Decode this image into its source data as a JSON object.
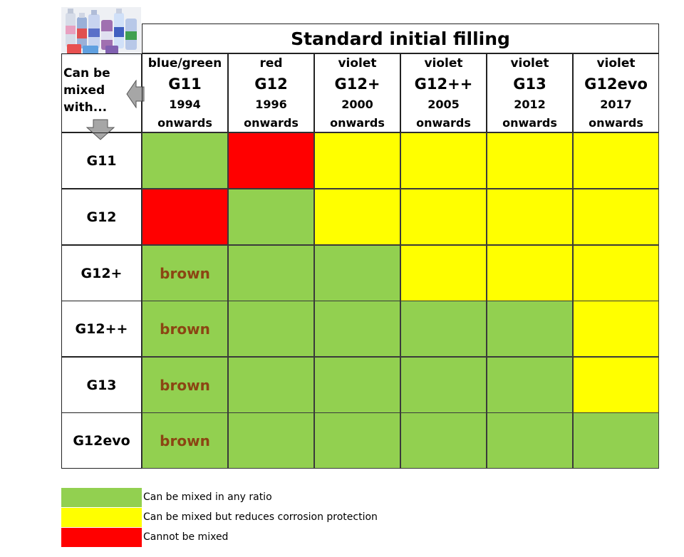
{
  "title": "Standard initial filling",
  "corner_label": "Can be\nmixed\nwith...",
  "columns": [
    {
      "color": "blue/green",
      "name": "G11",
      "year": "1994",
      "note": "onwards"
    },
    {
      "color": "red",
      "name": "G12",
      "year": "1996",
      "note": "onwards"
    },
    {
      "color": "violet",
      "name": "G12+",
      "year": "2000",
      "note": "onwards"
    },
    {
      "color": "violet",
      "name": "G12++",
      "year": "2005",
      "note": "onwards"
    },
    {
      "color": "violet",
      "name": "G13",
      "year": "2012",
      "note": "onwards"
    },
    {
      "color": "violet",
      "name": "G12evo",
      "year": "2017",
      "note": "onwards"
    }
  ],
  "rows": [
    {
      "label": "G11",
      "cells": [
        {
          "s": "green",
          "t": ""
        },
        {
          "s": "red",
          "t": ""
        },
        {
          "s": "yellow",
          "t": ""
        },
        {
          "s": "yellow",
          "t": ""
        },
        {
          "s": "yellow",
          "t": ""
        },
        {
          "s": "yellow",
          "t": ""
        }
      ]
    },
    {
      "label": "G12",
      "cells": [
        {
          "s": "red",
          "t": ""
        },
        {
          "s": "green",
          "t": ""
        },
        {
          "s": "yellow",
          "t": ""
        },
        {
          "s": "yellow",
          "t": ""
        },
        {
          "s": "yellow",
          "t": ""
        },
        {
          "s": "yellow",
          "t": ""
        }
      ]
    },
    {
      "label": "G12+",
      "cells": [
        {
          "s": "green",
          "t": "brown"
        },
        {
          "s": "green",
          "t": ""
        },
        {
          "s": "green",
          "t": ""
        },
        {
          "s": "yellow",
          "t": ""
        },
        {
          "s": "yellow",
          "t": ""
        },
        {
          "s": "yellow",
          "t": ""
        }
      ]
    },
    {
      "label": "G12++",
      "cells": [
        {
          "s": "green",
          "t": "brown"
        },
        {
          "s": "green",
          "t": ""
        },
        {
          "s": "green",
          "t": ""
        },
        {
          "s": "green",
          "t": ""
        },
        {
          "s": "green",
          "t": ""
        },
        {
          "s": "yellow",
          "t": ""
        }
      ]
    },
    {
      "label": "G13",
      "cells": [
        {
          "s": "green",
          "t": "brown"
        },
        {
          "s": "green",
          "t": ""
        },
        {
          "s": "green",
          "t": ""
        },
        {
          "s": "green",
          "t": ""
        },
        {
          "s": "green",
          "t": ""
        },
        {
          "s": "yellow",
          "t": ""
        }
      ]
    },
    {
      "label": "G12evo",
      "cells": [
        {
          "s": "green",
          "t": "brown"
        },
        {
          "s": "green",
          "t": ""
        },
        {
          "s": "green",
          "t": ""
        },
        {
          "s": "green",
          "t": ""
        },
        {
          "s": "green",
          "t": ""
        },
        {
          "s": "green",
          "t": ""
        }
      ]
    }
  ],
  "legend": [
    {
      "status": "green",
      "text": "Can be mixed in any ratio"
    },
    {
      "status": "yellow",
      "text": "Can be mixed but reduces corrosion protection"
    },
    {
      "status": "red",
      "text": "Cannot be mixed"
    }
  ],
  "colors": {
    "green": "#92d050",
    "yellow": "#ffff00",
    "red": "#ff0000",
    "brown_text": "#8b4513",
    "arrow": "#a6a6a6"
  }
}
